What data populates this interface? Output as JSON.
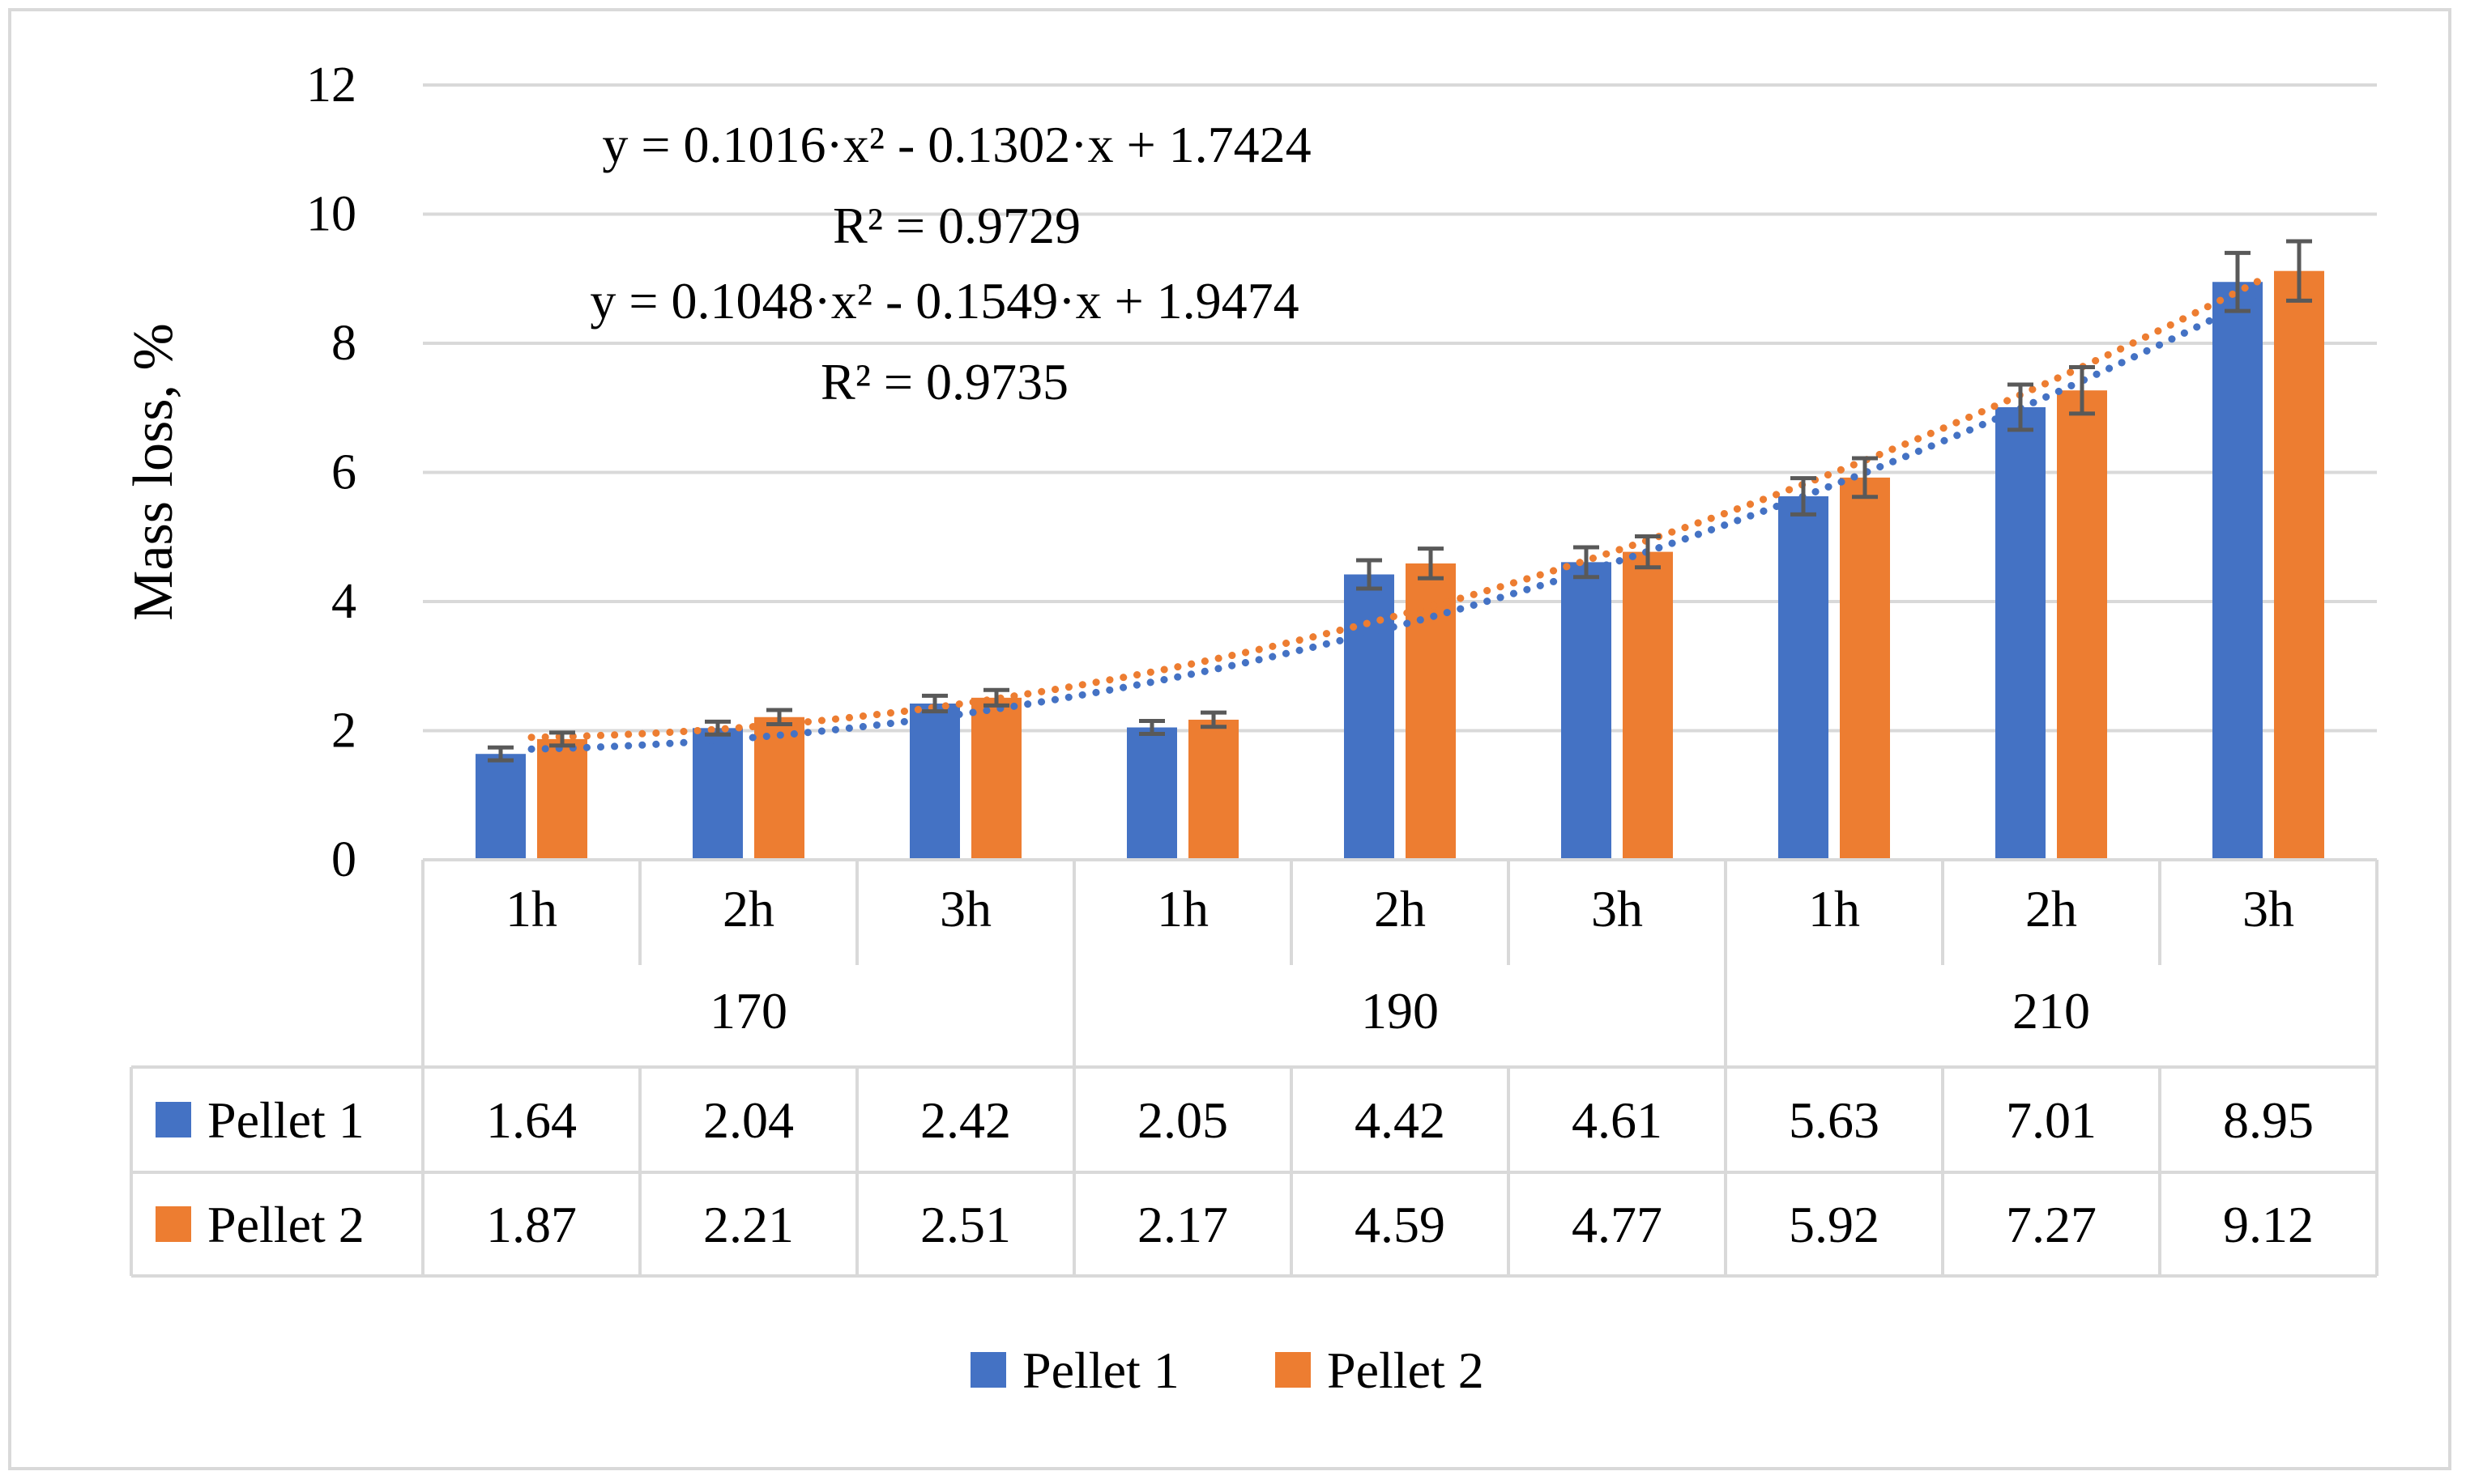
{
  "chart_data": {
    "type": "bar",
    "title": "",
    "xlabel": "",
    "ylabel": "Mass loss, %",
    "ylim": [
      0,
      12
    ],
    "yticks": [
      "0",
      "2",
      "4",
      "6",
      "8",
      "10",
      "12"
    ],
    "grid": true,
    "legend_position": "bottom",
    "groups": [
      {
        "label": "170",
        "categories": [
          "1h",
          "2h",
          "3h"
        ]
      },
      {
        "label": "190",
        "categories": [
          "1h",
          "2h",
          "3h"
        ]
      },
      {
        "label": "210",
        "categories": [
          "1h",
          "2h",
          "3h"
        ]
      }
    ],
    "series": [
      {
        "name": "Pellet 1",
        "color": "#4472C4",
        "values": [
          1.64,
          2.04,
          2.42,
          2.05,
          4.42,
          4.61,
          5.63,
          7.01,
          8.95
        ],
        "labels": [
          "1.64",
          "2.04",
          "2.42",
          "2.05",
          "4.42",
          "4.61",
          "5.63",
          "7.01",
          "8.95"
        ],
        "errors": [
          0.1,
          0.1,
          0.12,
          0.1,
          0.22,
          0.23,
          0.28,
          0.35,
          0.45
        ],
        "trendline": {
          "type": "polynomial",
          "order": 2,
          "coefficients": [
            0.1016,
            -0.1302,
            1.7424
          ],
          "equation": "y = 0.1016·x² - 0.1302·x + 1.7424",
          "r2": "R² = 0.9729"
        }
      },
      {
        "name": "Pellet 2",
        "color": "#ED7D31",
        "values": [
          1.87,
          2.21,
          2.51,
          2.17,
          4.59,
          4.77,
          5.92,
          7.27,
          9.12
        ],
        "labels": [
          "1.87",
          "2.21",
          "2.51",
          "2.17",
          "4.59",
          "4.77",
          "5.92",
          "7.27",
          "9.12"
        ],
        "errors": [
          0.1,
          0.11,
          0.12,
          0.11,
          0.23,
          0.24,
          0.3,
          0.36,
          0.46
        ],
        "trendline": {
          "type": "polynomial",
          "order": 2,
          "coefficients": [
            0.1048,
            -0.1549,
            1.9474
          ],
          "equation": "y = 0.1048·x² - 0.1549·x + 1.9474",
          "r2": "R² = 0.9735"
        }
      }
    ],
    "error_bar_color": "#595959",
    "grid_color": "#d9d9d9"
  }
}
